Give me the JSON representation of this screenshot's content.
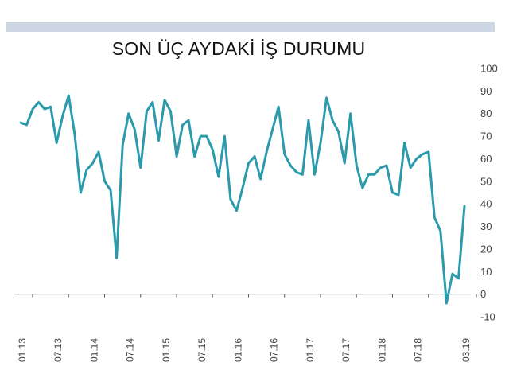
{
  "chart_data": {
    "type": "line",
    "title": "SON ÜÇ AYDAKİ İŞ DURUMU",
    "xlabel": "",
    "ylabel": "",
    "ylim": [
      -10,
      100
    ],
    "y_ticks": [
      -10,
      0,
      10,
      20,
      30,
      40,
      50,
      60,
      70,
      80,
      90,
      100
    ],
    "x_tick_labels": [
      "01.13",
      "07.13",
      "01.14",
      "07.14",
      "01.15",
      "07.15",
      "01.16",
      "07.16",
      "01.17",
      "07.17",
      "01.18",
      "07.18",
      "03.19"
    ],
    "x_tick_index": [
      0,
      6,
      12,
      18,
      24,
      30,
      36,
      42,
      48,
      54,
      60,
      66,
      74
    ],
    "grid": false,
    "legend": "none",
    "line_color": "#2a9aac",
    "series": [
      {
        "values": [
          76,
          75,
          82,
          85,
          82,
          83,
          67,
          79,
          88,
          71,
          45,
          55,
          58,
          63,
          50,
          46,
          16,
          66,
          80,
          73,
          56,
          81,
          85,
          68,
          86,
          81,
          61,
          75,
          77,
          61,
          70,
          70,
          64,
          52,
          70,
          42,
          37,
          47,
          58,
          61,
          51,
          63,
          73,
          83,
          62,
          57,
          54,
          53,
          77,
          53,
          67,
          87,
          77,
          72,
          58,
          80,
          57,
          47,
          53,
          53,
          56,
          57,
          45,
          44,
          67,
          56,
          60,
          62,
          63,
          34,
          28,
          -4,
          9,
          7,
          39
        ]
      }
    ]
  }
}
